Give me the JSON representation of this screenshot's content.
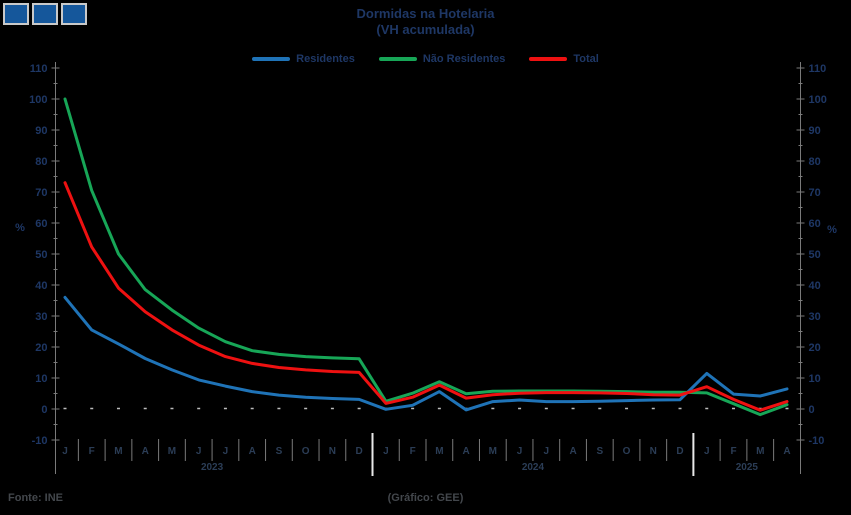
{
  "title": "Dormidas na Hotelaria",
  "subtitle": "(VH acumulada)",
  "legend": [
    {
      "label": "Residentes",
      "color": "#1f73b7"
    },
    {
      "label": "Não Residentes",
      "color": "#17a657"
    },
    {
      "label": "Total",
      "color": "#ee1111"
    }
  ],
  "footer": {
    "source": "Fonte: INE",
    "credit": "(Gráfico: GEE)"
  },
  "logo": {
    "square_count": 3,
    "fill": "#15579b",
    "border": "#c9c9c9"
  },
  "colors": {
    "background": "#000000",
    "axis": "#7a7a7a",
    "text": "#1e3765",
    "month_text": "#2b3d56",
    "year_separator": "#e8e8e8",
    "zero_line_dots": "#bdbdbd"
  },
  "chart_data": {
    "type": "line",
    "title": "Dormidas na Hotelaria",
    "subtitle": "(VH acumulada)",
    "ylabel_left": "%",
    "ylabel_right": "%",
    "ylim": [
      -10,
      110
    ],
    "ytick_step": 10,
    "ytick_minor_step": 5,
    "grid": "zero-line-dotted-only",
    "legend_position": "top",
    "months": [
      "J",
      "F",
      "M",
      "A",
      "M",
      "J",
      "J",
      "A",
      "S",
      "O",
      "N",
      "D",
      "J",
      "F",
      "M",
      "A",
      "M",
      "J",
      "J",
      "A",
      "S",
      "O",
      "N",
      "D",
      "J",
      "F",
      "M",
      "A"
    ],
    "years": [
      {
        "label": "2023",
        "months": 12
      },
      {
        "label": "2024",
        "months": 12
      },
      {
        "label": "2025",
        "months": 4
      }
    ],
    "series": [
      {
        "name": "Residentes",
        "color": "#1f73b7",
        "values": [
          36,
          25.5,
          21,
          16.3,
          12.6,
          9.4,
          7.4,
          5.6,
          4.5,
          3.8,
          3.4,
          3.1,
          -0.1,
          1.2,
          5.6,
          -0.3,
          2.4,
          2.9,
          2.4,
          2.4,
          2.5,
          2.7,
          2.9,
          3.0,
          11.5,
          4.8,
          4.2,
          6.5
        ]
      },
      {
        "name": "Não Residentes",
        "color": "#17a657",
        "values": [
          100,
          70.5,
          50,
          38.5,
          31.9,
          26.1,
          21.7,
          18.8,
          17.6,
          16.9,
          16.5,
          16.2,
          2.5,
          5.1,
          8.8,
          4.9,
          5.7,
          5.8,
          5.8,
          5.8,
          5.7,
          5.6,
          5.4,
          5.4,
          5.2,
          1.7,
          -1.8,
          1.4
        ]
      },
      {
        "name": "Total",
        "color": "#ee1111",
        "values": [
          73,
          52.3,
          39,
          31.4,
          25.5,
          20.6,
          16.9,
          14.7,
          13.4,
          12.6,
          12.1,
          11.8,
          1.8,
          3.8,
          7.7,
          3.5,
          4.6,
          5.1,
          5.3,
          5.3,
          5.2,
          5.0,
          4.6,
          4.5,
          7.2,
          3.1,
          -0.4,
          2.4
        ]
      }
    ]
  }
}
